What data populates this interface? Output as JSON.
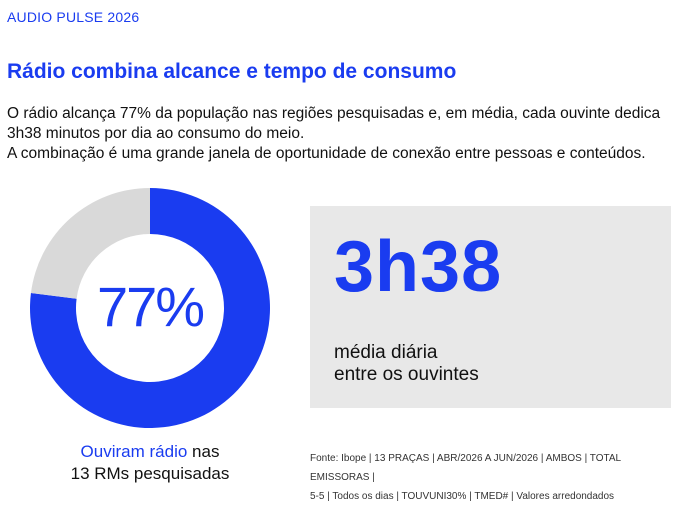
{
  "header": {
    "eyebrow": "AUDIO PULSE 2026",
    "title": "Rádio combina alcance e tempo de consumo",
    "paragraph1": "O rádio alcança 77% da população nas regiões pesquisadas e, em média, cada ouvinte dedica 3h38 minutos por dia ao consumo do meio.",
    "paragraph2": "A combinação é uma grande janela de oportunidade de conexão entre pessoas e conteúdos."
  },
  "chart_data": {
    "type": "pie",
    "variant": "donut",
    "center_label": "77%",
    "slices": [
      {
        "name": "Ouviram rádio",
        "value": 77,
        "color": "#1a3cf0"
      },
      {
        "name": "",
        "value": 23,
        "color": "#d9d9d9"
      }
    ],
    "caption": {
      "highlight": "Ouviram rádio",
      "rest1": " nas",
      "rest2": "13 RMs pesquisadas"
    }
  },
  "stat": {
    "value": "3h38",
    "label_line1": "média diária",
    "label_line2": "entre os ouvintes"
  },
  "source": {
    "line1": "Fonte: Ibope | 13 PRAÇAS | ABR/2026 A JUN/2026 | AMBOS | TOTAL EMISSORAS |",
    "line2": "5-5 | Todos os dias | TOUVUNI30% | TMED# | Valores arredondados"
  },
  "colors": {
    "accent": "#1a3cf0",
    "remainder": "#d9d9d9",
    "box": "#e8e8e8"
  }
}
